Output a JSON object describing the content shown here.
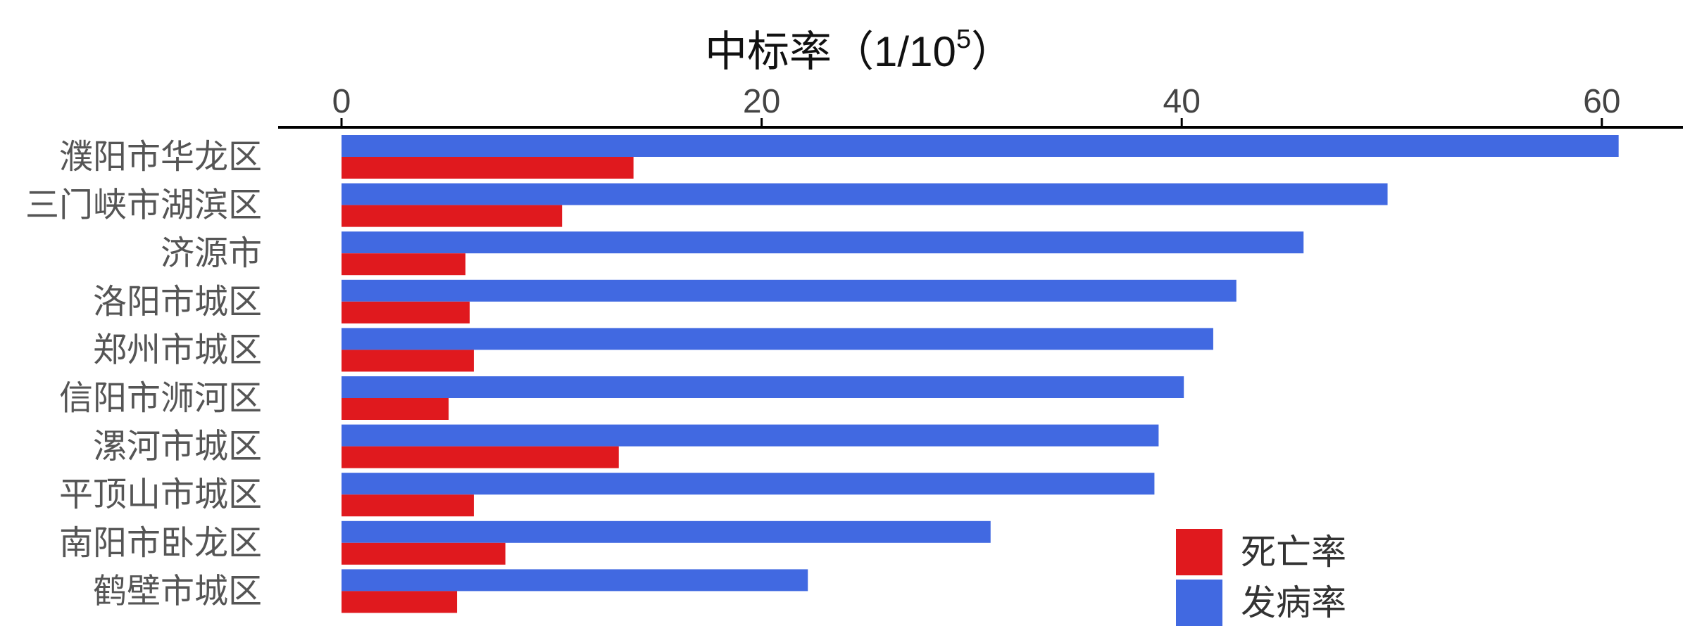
{
  "chart_data": {
    "type": "bar",
    "orientation": "horizontal",
    "title": "",
    "xlabel_main": "中标率（1/10",
    "xlabel_sup": "5",
    "xlabel_end": "）",
    "xlim": [
      0,
      64
    ],
    "ticks": [
      0,
      20,
      40,
      60
    ],
    "tick_labels": [
      "0",
      "20",
      "40",
      "60"
    ],
    "x_axis_position": "top",
    "grid": false,
    "legend_position": "bottom-right",
    "categories": [
      "濮阳市华龙区",
      "三门峡市湖滨区",
      "济源市",
      "洛阳市城区",
      "郑州市城区",
      "信阳市浉河区",
      "漯河市城区",
      "平顶山市城区",
      "南阳市卧龙区",
      "鹤壁市城区"
    ],
    "series": [
      {
        "name": "发病率",
        "color": "#4169E1",
        "values": [
          60.8,
          49.8,
          45.8,
          42.6,
          41.5,
          40.1,
          38.9,
          38.7,
          30.9,
          22.2
        ]
      },
      {
        "name": "死亡率",
        "color": "#E0191E",
        "values": [
          13.9,
          10.5,
          5.9,
          6.1,
          6.3,
          5.1,
          13.2,
          6.3,
          7.8,
          5.5
        ]
      }
    ],
    "legend": [
      {
        "name": "死亡率",
        "color": "#E0191E"
      },
      {
        "name": "发病率",
        "color": "#4169E1"
      }
    ]
  }
}
